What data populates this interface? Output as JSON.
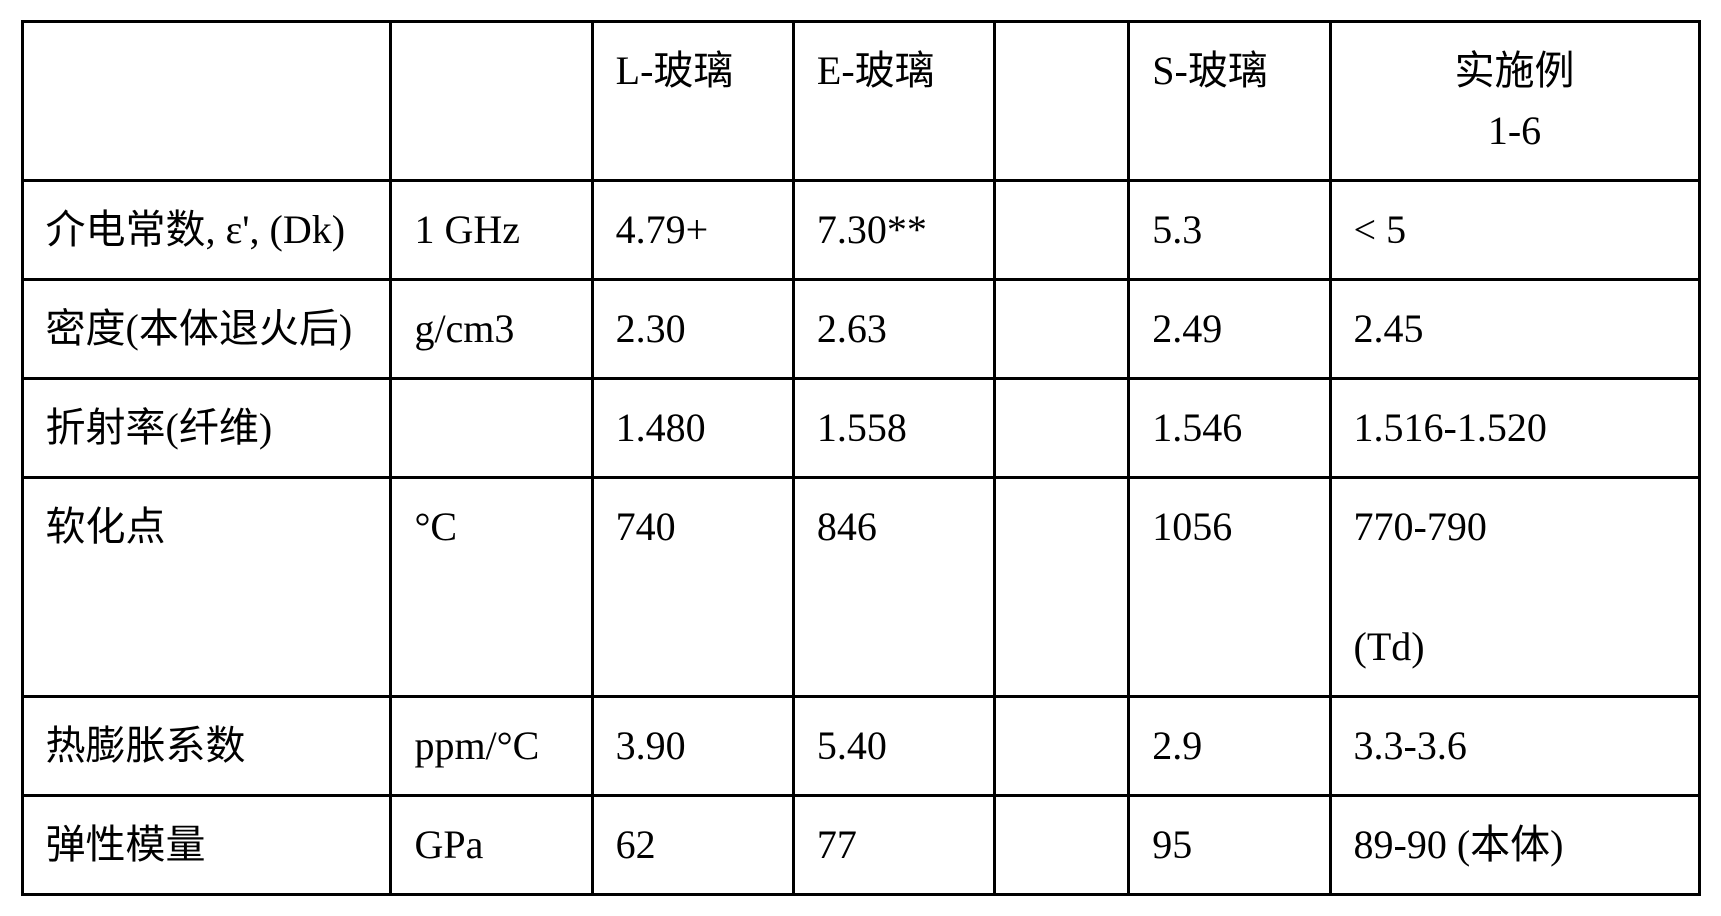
{
  "table": {
    "border_color": "#000000",
    "background_color": "#ffffff",
    "text_color": "#000000",
    "font_size_pt": 30,
    "columns": [
      {
        "key": "property",
        "header": "",
        "width_pct": 22,
        "align": "left"
      },
      {
        "key": "unit",
        "header": "",
        "width_pct": 12,
        "align": "left"
      },
      {
        "key": "l_glass",
        "header": "L-玻璃",
        "width_pct": 12,
        "align": "left"
      },
      {
        "key": "e_glass",
        "header": "E-玻璃",
        "width_pct": 12,
        "align": "left"
      },
      {
        "key": "blank",
        "header": "",
        "width_pct": 8,
        "align": "left"
      },
      {
        "key": "s_glass",
        "header": "S-玻璃",
        "width_pct": 12,
        "align": "left"
      },
      {
        "key": "example",
        "header": "实施例\n1-6",
        "width_pct": 22,
        "align": "center"
      }
    ],
    "headers": {
      "l_glass": "L-玻璃",
      "e_glass": "E-玻璃",
      "s_glass": "S-玻璃",
      "example_line1": "实施例",
      "example_line2": "1-6"
    },
    "rows": [
      {
        "property": "介电常数, ε', (Dk)",
        "unit": "1 GHz",
        "l_glass": "4.79+",
        "e_glass": "7.30**",
        "blank": "",
        "s_glass": "5.3",
        "example": "< 5"
      },
      {
        "property": "密度(本体退火后)",
        "unit": "g/cm3",
        "l_glass": "2.30",
        "e_glass": "2.63",
        "blank": "",
        "s_glass": "2.49",
        "example": "2.45"
      },
      {
        "property": "折射率(纤维)",
        "unit": "",
        "l_glass": "1.480",
        "e_glass": "1.558",
        "blank": "",
        "s_glass": "1.546",
        "example": "1.516-1.520"
      },
      {
        "property": "软化点",
        "unit": "°C",
        "l_glass": "740",
        "e_glass": "846",
        "blank": "",
        "s_glass": "1056",
        "example_line1": "770-790",
        "example_line2": "(Td)"
      },
      {
        "property": "热膨胀系数",
        "unit": "ppm/°C",
        "l_glass": "3.90",
        "e_glass": "5.40",
        "blank": "",
        "s_glass": "2.9",
        "example": "3.3-3.6"
      },
      {
        "property": "弹性模量",
        "unit": "GPa",
        "l_glass": "62",
        "e_glass": "77",
        "blank": "",
        "s_glass": "95",
        "example": "89-90 (本体)"
      }
    ]
  }
}
